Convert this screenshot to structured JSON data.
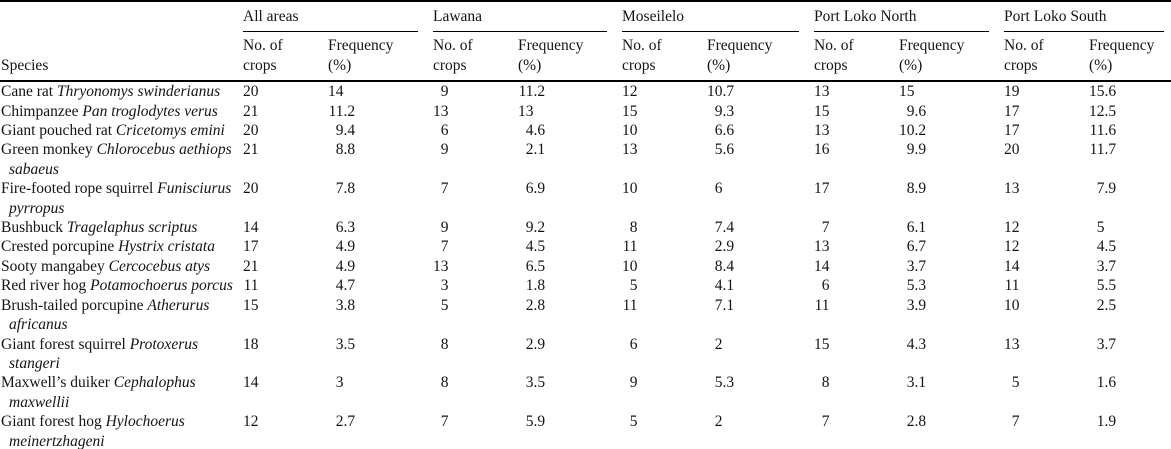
{
  "page": {
    "background": "#ffffff",
    "text_color": "#141414",
    "rule_color": "#000000"
  },
  "table": {
    "species_header": "Species",
    "groups": [
      {
        "label": "All areas"
      },
      {
        "label": "Lawana"
      },
      {
        "label": "Moseilelo"
      },
      {
        "label": "Port Loko North"
      },
      {
        "label": "Port Loko South"
      }
    ],
    "subheaders": {
      "crops": [
        "No. of",
        "crops"
      ],
      "frequency": [
        "Frequency",
        "(%)"
      ]
    },
    "rows": [
      {
        "common": "Cane rat",
        "sci": "Thryonomys swinderianus",
        "values": [
          "20",
          "14",
          "9",
          "11.2",
          "12",
          "10.7",
          "13",
          "15",
          "19",
          "15.6"
        ]
      },
      {
        "common": "Chimpanzee",
        "sci": "Pan troglodytes verus",
        "values": [
          "21",
          "11.2",
          "13",
          "13",
          "15",
          "9.3",
          "15",
          "9.6",
          "17",
          "12.5"
        ]
      },
      {
        "common": "Giant pouched rat",
        "sci": "Cricetomys emini",
        "values": [
          "20",
          "9.4",
          "6",
          "4.6",
          "10",
          "6.6",
          "13",
          "10.2",
          "17",
          "11.6"
        ]
      },
      {
        "common": "Green monkey",
        "sci": "Chlorocebus aethiops sabaeus",
        "values": [
          "21",
          "8.8",
          "9",
          "2.1",
          "13",
          "5.6",
          "16",
          "9.9",
          "20",
          "11.7"
        ]
      },
      {
        "common": "Fire-footed rope squirrel",
        "sci": "Funisciurus pyrropus",
        "values": [
          "20",
          "7.8",
          "7",
          "6.9",
          "10",
          "6",
          "17",
          "8.9",
          "13",
          "7.9"
        ]
      },
      {
        "common": "Bushbuck",
        "sci": "Tragelaphus scriptus",
        "values": [
          "14",
          "6.3",
          "9",
          "9.2",
          "8",
          "7.4",
          "7",
          "6.1",
          "12",
          "5"
        ]
      },
      {
        "common": "Crested porcupine",
        "sci": "Hystrix cristata",
        "values": [
          "17",
          "4.9",
          "7",
          "4.5",
          "11",
          "2.9",
          "13",
          "6.7",
          "12",
          "4.5"
        ]
      },
      {
        "common": "Sooty mangabey",
        "sci": "Cercocebus atys",
        "values": [
          "21",
          "4.9",
          "13",
          "6.5",
          "10",
          "8.4",
          "14",
          "3.7",
          "14",
          "3.7"
        ]
      },
      {
        "common": "Red river hog",
        "sci": "Potamochoerus porcus",
        "values": [
          "11",
          "4.7",
          "3",
          "1.8",
          "5",
          "4.1",
          "6",
          "5.3",
          "11",
          "5.5"
        ]
      },
      {
        "common": "Brush-tailed porcupine",
        "sci": "Atherurus africanus",
        "values": [
          "15",
          "3.8",
          "5",
          "2.8",
          "11",
          "7.1",
          "11",
          "3.9",
          "10",
          "2.5"
        ]
      },
      {
        "common": "Giant forest squirrel",
        "sci": "Protoxerus stangeri",
        "values": [
          "18",
          "3.5",
          "8",
          "2.9",
          "6",
          "2",
          "15",
          "4.3",
          "13",
          "3.7"
        ]
      },
      {
        "common": "Maxwell’s duiker",
        "sci": "Cephalophus maxwellii",
        "values": [
          "14",
          "3",
          "8",
          "3.5",
          "9",
          "5.3",
          "8",
          "3.1",
          "5",
          "1.6"
        ]
      },
      {
        "common": "Giant forest hog",
        "sci": "Hylochoerus meinertzhageni",
        "values": [
          "12",
          "2.7",
          "7",
          "5.9",
          "5",
          "2",
          "7",
          "2.8",
          "7",
          "1.9"
        ]
      }
    ]
  }
}
